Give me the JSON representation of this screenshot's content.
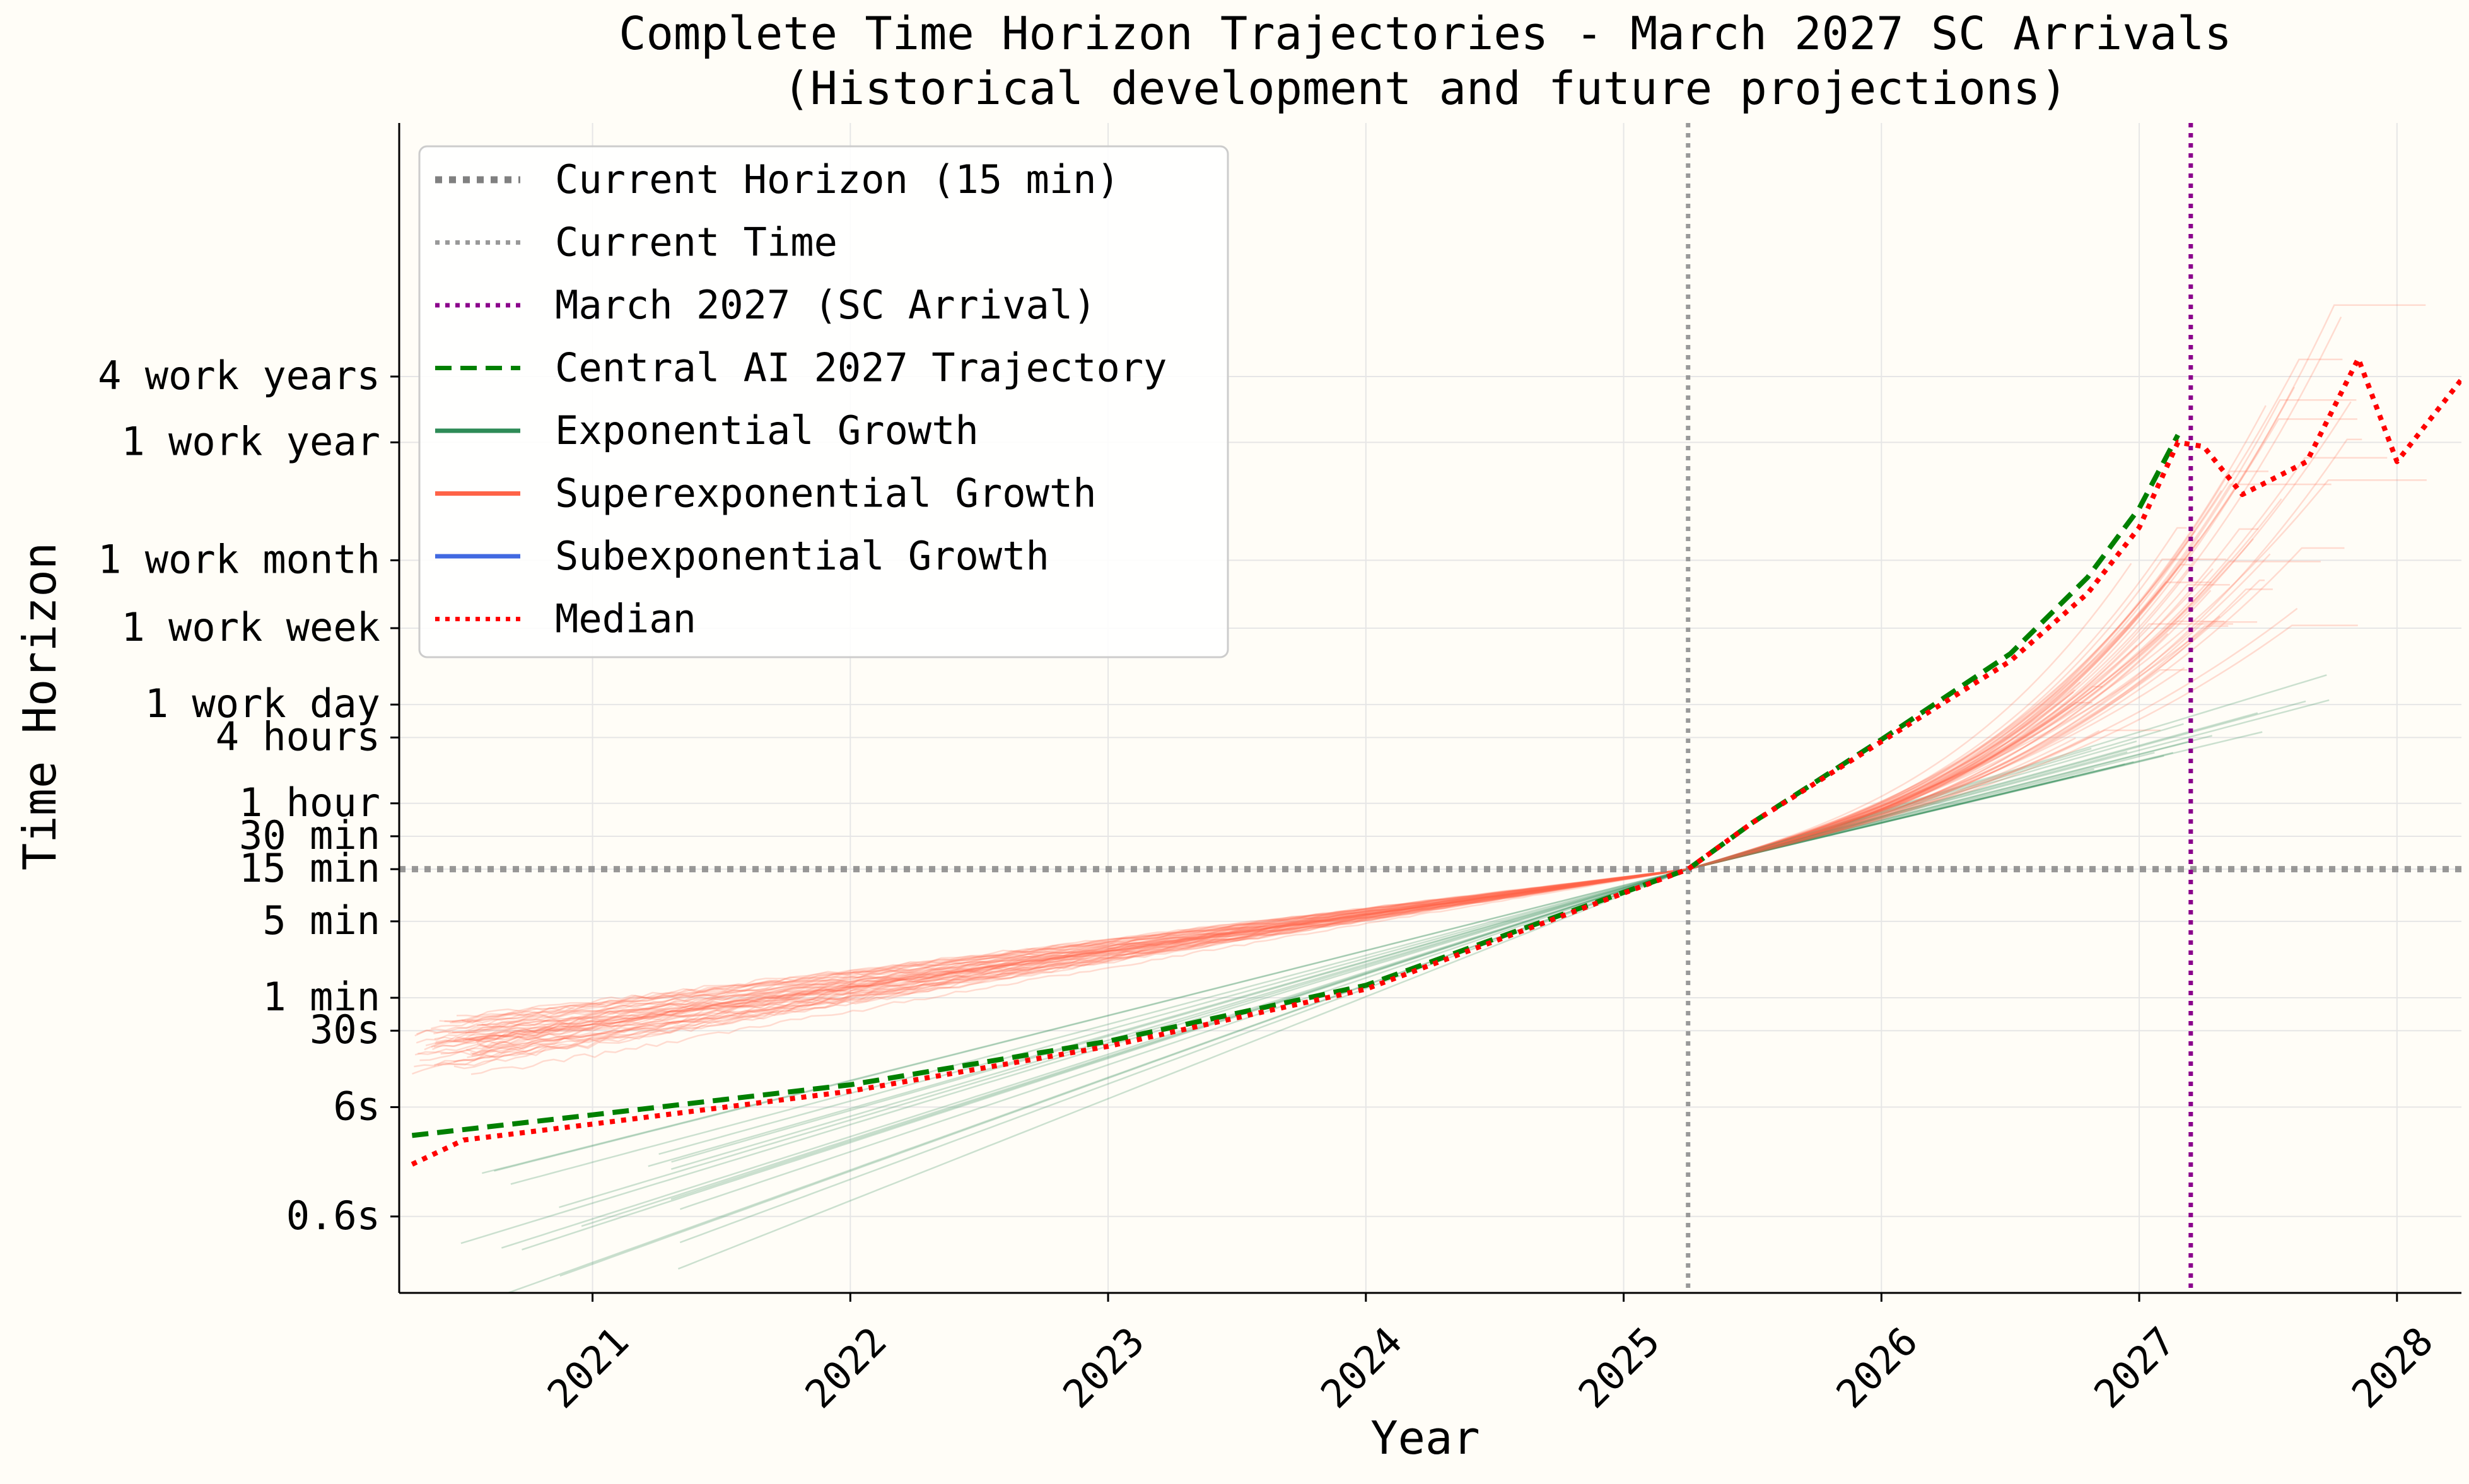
{
  "chart_data": {
    "type": "line",
    "title": "Complete Time Horizon Trajectories - March 2027 SC Arrivals",
    "subtitle": "(Historical development and future projections)",
    "xlabel": "Year",
    "ylabel": "Time Horizon",
    "xlim": [
      2020.25,
      2028.25
    ],
    "x_tick_labels": [
      "2021",
      "2022",
      "2023",
      "2024",
      "2025",
      "2026",
      "2027",
      "2028"
    ],
    "x_tick_values": [
      2021,
      2022,
      2023,
      2024,
      2025,
      2026,
      2027,
      2028
    ],
    "y_scale": "log",
    "y_unit": "minutes",
    "ylim": [
      0.002,
      100000000
    ],
    "y_ticks": [
      {
        "label": "0.6s",
        "value": 0.01
      },
      {
        "label": "6s",
        "value": 0.1
      },
      {
        "label": "30s",
        "value": 0.5
      },
      {
        "label": "1 min",
        "value": 1
      },
      {
        "label": "5 min",
        "value": 5
      },
      {
        "label": "15 min",
        "value": 15
      },
      {
        "label": "30 min",
        "value": 30
      },
      {
        "label": "1 hour",
        "value": 60
      },
      {
        "label": "4 hours",
        "value": 240
      },
      {
        "label": "1 work day",
        "value": 480
      },
      {
        "label": "1 work week",
        "value": 2400
      },
      {
        "label": "1 work month",
        "value": 10020
      },
      {
        "label": "1 work year",
        "value": 120000
      },
      {
        "label": "4 work years",
        "value": 480000
      }
    ],
    "grid": true,
    "legend_position": "top-left",
    "reference_lines": {
      "current_horizon": {
        "label": "Current Horizon (15 min)",
        "value": 15,
        "color": "#808080"
      },
      "current_time": {
        "label": "Current Time",
        "value": 2025.25,
        "color": "#999999"
      },
      "sc_arrival": {
        "label": "March 2027 (SC Arrival)",
        "value": 2027.2,
        "color": "#8b008b"
      }
    },
    "series": [
      {
        "name": "Central AI 2027 Trajectory",
        "color": "#008000",
        "style": "dashed",
        "x": [
          2020.3,
          2021.0,
          2022.0,
          2023.0,
          2024.0,
          2025.25,
          2025.5,
          2026.0,
          2026.5,
          2026.8,
          2027.0,
          2027.15
        ],
        "y": [
          0.055,
          0.085,
          0.16,
          0.4,
          1.3,
          15,
          40,
          230,
          1400,
          7000,
          30000,
          140000
        ]
      },
      {
        "name": "Median",
        "color": "#ff0000",
        "style": "dotted",
        "x": [
          2020.3,
          2020.5,
          2021.0,
          2022.0,
          2023.0,
          2024.0,
          2025.25,
          2025.5,
          2026.0,
          2026.5,
          2026.8,
          2027.0,
          2027.15,
          2027.25,
          2027.4,
          2027.65,
          2027.85,
          2028.0,
          2028.25
        ],
        "y": [
          0.03,
          0.05,
          0.07,
          0.14,
          0.36,
          1.2,
          15,
          40,
          220,
          1200,
          5000,
          20000,
          120000,
          110000,
          40000,
          80000,
          700000,
          80000,
          450000
        ]
      },
      {
        "name": "Exponential Growth",
        "color": "#2e8b57",
        "style": "solid"
      },
      {
        "name": "Superexponential Growth",
        "color": "#ff6347",
        "style": "solid"
      },
      {
        "name": "Subexponential Growth",
        "color": "#4169e1",
        "style": "solid"
      }
    ]
  },
  "legend": {
    "entries": [
      {
        "label": "Current Horizon (15 min)",
        "color": "#808080",
        "style": "thick-dotted"
      },
      {
        "label": "Current Time",
        "color": "#999999",
        "style": "dotted"
      },
      {
        "label": "March 2027 (SC Arrival)",
        "color": "#8b008b",
        "style": "dotted"
      },
      {
        "label": "Central AI 2027 Trajectory",
        "color": "#008000",
        "style": "dashed"
      },
      {
        "label": "Exponential Growth",
        "color": "#2e8b57",
        "style": "solid"
      },
      {
        "label": "Superexponential Growth",
        "color": "#ff6347",
        "style": "solid"
      },
      {
        "label": "Subexponential Growth",
        "color": "#4169e1",
        "style": "solid"
      },
      {
        "label": "Median",
        "color": "#ff0000",
        "style": "dotted"
      }
    ]
  }
}
